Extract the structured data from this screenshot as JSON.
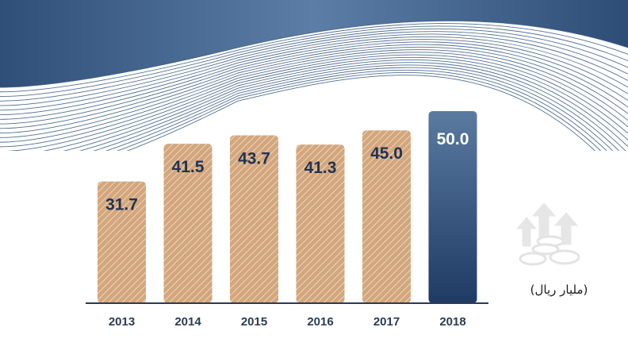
{
  "chart_data": {
    "type": "bar",
    "categories": [
      "2013",
      "2014",
      "2015",
      "2016",
      "2017",
      "2018"
    ],
    "values": [
      31.7,
      41.5,
      43.7,
      41.3,
      45.0,
      50.0
    ],
    "value_labels": [
      "31.7",
      "41.5",
      "43.7",
      "41.3",
      "45.0",
      "50.0"
    ],
    "ylabel": "(مليار ريال)",
    "ylim": [
      0,
      50.0
    ],
    "grid": false,
    "colors": {
      "default_bar": "#d3a67c",
      "default_hatch": "#ecd6c0",
      "highlight_bar_top": "#5a7aa0",
      "highlight_bar_bottom": "#1f3b63",
      "label_dark": "#1f3355",
      "label_light": "#ffffff",
      "axis": "#2b3b55"
    },
    "highlight_index": 5
  },
  "decor": {
    "banner_color": "#3e5f88",
    "icon": "coins-arrows-icon"
  }
}
